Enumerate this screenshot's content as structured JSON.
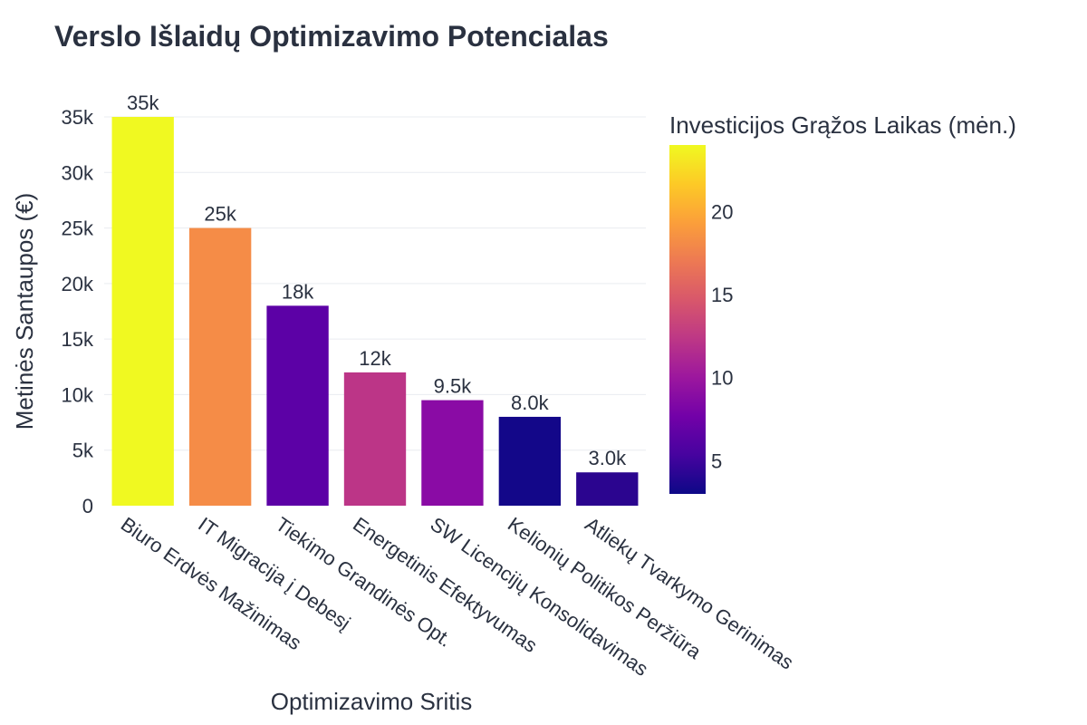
{
  "chart_data": {
    "type": "bar",
    "title": "Verslo Išlaidų Optimizavimo Potencialas",
    "xlabel": "Optimizavimo Sritis",
    "ylabel": "Metinės Santaupos (€)",
    "ylim": [
      0,
      35000
    ],
    "y_ticks": [
      0,
      5000,
      10000,
      15000,
      20000,
      25000,
      30000,
      35000
    ],
    "y_tick_labels": [
      "0",
      "5k",
      "10k",
      "15k",
      "20k",
      "25k",
      "30k",
      "35k"
    ],
    "grid": true,
    "categories": [
      "Biuro Erdvės Mažinimas",
      "IT Migracija į Debesį",
      "Tiekimo Grandinės Opt.",
      "Energetinis Efektyvumas",
      "SW Licencijų Konsolidavimas",
      "Kelionių Politikos Peržiūra",
      "Atliekų Tvarkymo Gerinimas"
    ],
    "values": [
      35000,
      25000,
      18000,
      12000,
      9500,
      8000,
      3000
    ],
    "value_labels": [
      "35k",
      "25k",
      "18k",
      "12k",
      "9.5k",
      "8.0k",
      "3.0k"
    ],
    "color_values": [
      24,
      18,
      6,
      14,
      9,
      3,
      4
    ],
    "bar_colors": [
      "#f0f921",
      "#f58c47",
      "#5c01a6",
      "#bc3587",
      "#8a0ba5",
      "#130789",
      "#2b058f"
    ],
    "colorbar": {
      "title": "Investicijos Grąžos Laikas (mėn.)",
      "range": [
        3,
        24
      ],
      "ticks": [
        5,
        10,
        15,
        20
      ],
      "tick_labels": [
        "5",
        "10",
        "15",
        "20"
      ],
      "placement": "right",
      "colorscale": [
        "#0d0887",
        "#46039f",
        "#7201a8",
        "#9c179e",
        "#bd3786",
        "#d8576b",
        "#ed7953",
        "#fb9f3a",
        "#fdca26",
        "#f0f921"
      ]
    }
  }
}
